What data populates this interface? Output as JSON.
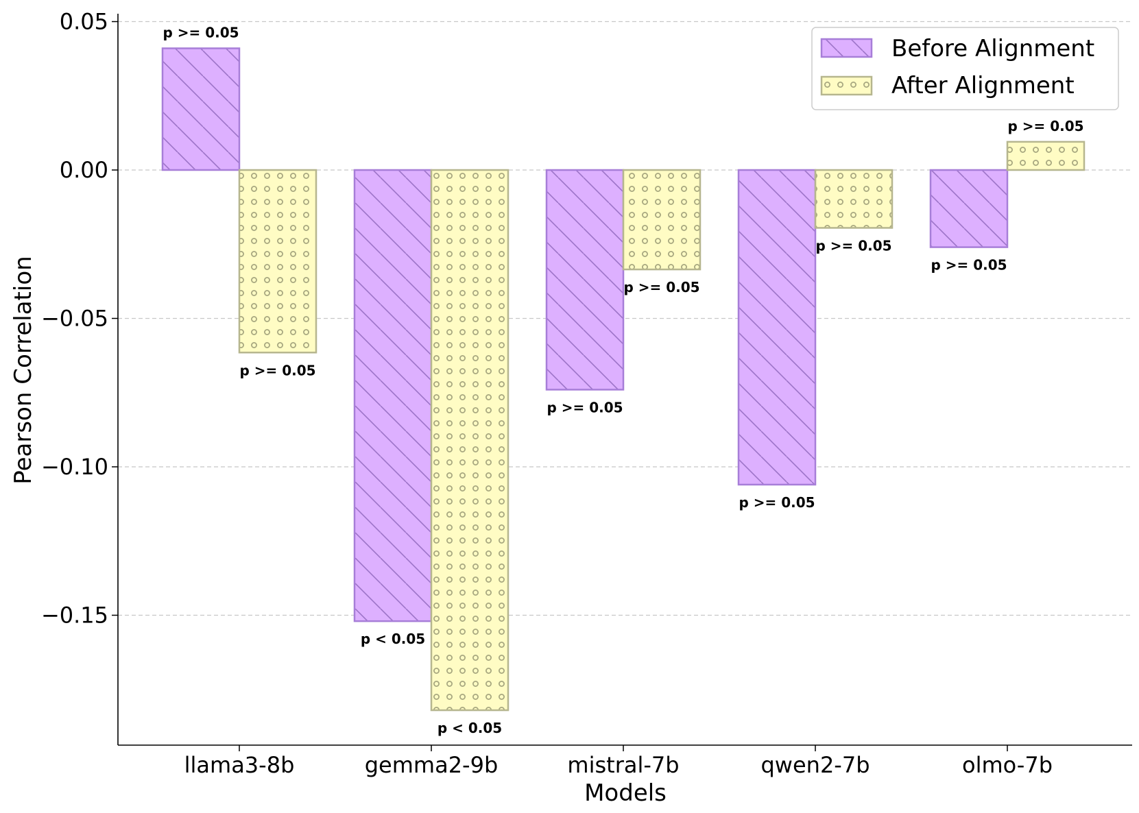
{
  "chart_data": {
    "type": "bar",
    "title": "",
    "xlabel": "Models",
    "ylabel": "Pearson Correlation",
    "categories": [
      "llama3-8b",
      "gemma2-9b",
      "mistral-7b",
      "qwen2-7b",
      "olmo-7b"
    ],
    "ylim": [
      -0.194,
      0.053
    ],
    "yticks": [
      0.05,
      0.0,
      -0.05,
      -0.1,
      -0.15
    ],
    "ytick_labels": [
      "0.05",
      "0.00",
      "−0.05",
      "−0.10",
      "−0.15"
    ],
    "grid": "horizontal-dashed",
    "legend_position": "top-right",
    "series": [
      {
        "name": "Before Alignment",
        "hatch": "diagonal",
        "fill_color": "#DDB0FF",
        "edge_color": "#A77ED8",
        "hatch_color": "#9D74C8",
        "values": [
          0.041,
          -0.152,
          -0.074,
          -0.106,
          -0.026
        ],
        "significance": [
          "p >= 0.05",
          "p < 0.05",
          "p >= 0.05",
          "p >= 0.05",
          "p >= 0.05"
        ]
      },
      {
        "name": "After Alignment",
        "hatch": "circles",
        "fill_color": "#FFFCC4",
        "edge_color": "#B6B68E",
        "hatch_color": "#A8A880",
        "values": [
          -0.0615,
          -0.182,
          -0.0335,
          -0.0195,
          0.0095
        ],
        "significance": [
          "p >= 0.05",
          "p < 0.05",
          "p >= 0.05",
          "p >= 0.05",
          "p >= 0.05"
        ]
      }
    ]
  }
}
